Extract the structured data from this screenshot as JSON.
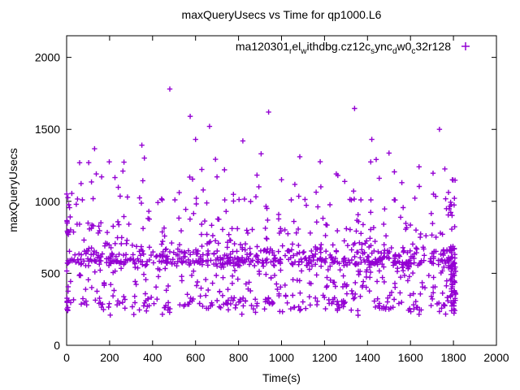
{
  "window": {
    "background": "#ffffff",
    "foreground": "#000000"
  },
  "chart_data": {
    "type": "scatter",
    "title": "maxQueryUsecs vs Time for qp1000.L6",
    "xlabel": "Time(s)",
    "ylabel": "maxQueryUsecs",
    "xlim": [
      0,
      2000
    ],
    "ylim": [
      0,
      2150
    ],
    "x_ticks": [
      0,
      200,
      400,
      600,
      800,
      1000,
      1200,
      1400,
      1600,
      1800,
      2000
    ],
    "y_ticks": [
      0,
      500,
      1000,
      1500,
      2000
    ],
    "grid": false,
    "legend_position": "top-right-inside",
    "axis_color": "#000000",
    "tick_length": 6,
    "marker_half_size": 3.2,
    "series": [
      {
        "name_display": "ma120301relwithdbg.cz12csyncdw0c32r128",
        "name_segments": [
          {
            "text": "ma120301"
          },
          {
            "text": "r",
            "subscript": true
          },
          {
            "text": "el"
          },
          {
            "text": "w",
            "subscript": true
          },
          {
            "text": "ithdbg.cz12c"
          },
          {
            "text": "s",
            "subscript": true
          },
          {
            "text": "ync"
          },
          {
            "text": "d",
            "subscript": true
          },
          {
            "text": "w0"
          },
          {
            "text": "c",
            "subscript": true
          },
          {
            "text": "32r128"
          }
        ],
        "marker": "plus",
        "color": "#9400d3",
        "x_span_seconds": [
          0,
          1810
        ],
        "dense_band_usecs": [
          555,
          650
        ],
        "y_floor_usecs": 205,
        "y_max_observed": 1780,
        "outliers": [
          [
            130,
            1365
          ],
          [
            138,
            1190
          ],
          [
            163,
            1170
          ],
          [
            225,
            1165
          ],
          [
            262,
            1210
          ],
          [
            350,
            1390
          ],
          [
            362,
            1300
          ],
          [
            480,
            1780
          ],
          [
            575,
            1590
          ],
          [
            600,
            1430
          ],
          [
            665,
            1520
          ],
          [
            700,
            1170
          ],
          [
            820,
            1420
          ],
          [
            905,
            1330
          ],
          [
            940,
            1620
          ],
          [
            1000,
            1150
          ],
          [
            1085,
            1310
          ],
          [
            1180,
            1275
          ],
          [
            1255,
            1190
          ],
          [
            1340,
            1645
          ],
          [
            1420,
            1430
          ],
          [
            1500,
            1335
          ],
          [
            1525,
            1205
          ],
          [
            1560,
            1130
          ],
          [
            1640,
            1240
          ],
          [
            1705,
            1195
          ],
          [
            1735,
            1500
          ],
          [
            1760,
            1225
          ],
          [
            1795,
            1150
          ]
        ],
        "generator": {
          "seed": 20123,
          "bands": [
            {
              "n": 320,
              "x": [
                3,
                1808
              ],
              "y": [
                552,
                655
              ],
              "pow": 1
            },
            {
              "n": 130,
              "x": [
                3,
                1808
              ],
              "y": [
                568,
                608
              ],
              "pow": 1
            },
            {
              "n": 255,
              "x": [
                3,
                1808
              ],
              "y": [
                228,
                552
              ],
              "pow": 1
            },
            {
              "n": 100,
              "x": [
                3,
                1808
              ],
              "y": [
                240,
                330
              ],
              "pow": 1
            },
            {
              "n": 225,
              "x": [
                3,
                1808
              ],
              "y": [
                655,
                1010
              ],
              "pow": 1.9
            },
            {
              "n": 55,
              "x": [
                3,
                1808
              ],
              "y": [
                1010,
                1300
              ],
              "pow": 2.2
            },
            {
              "n": 10,
              "x": [
                3,
                1808
              ],
              "y": [
                205,
                232
              ],
              "pow": 1
            },
            {
              "n": 22,
              "x": [
                0,
                10
              ],
              "y": [
                235,
                1150
              ],
              "pow": 1.4
            },
            {
              "n": 52,
              "x": [
                1786,
                1812
              ],
              "y": [
                240,
                680
              ],
              "pow": 1
            },
            {
              "n": 10,
              "x": [
                1786,
                1812
              ],
              "y": [
                680,
                1160
              ],
              "pow": 1.6
            }
          ]
        }
      }
    ]
  }
}
